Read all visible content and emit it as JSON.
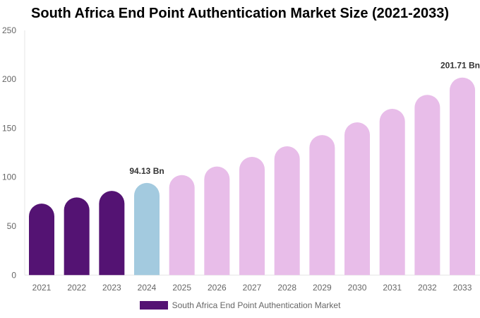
{
  "chart_data": {
    "type": "bar",
    "title": "South Africa End Point Authentication Market Size (2021-2033)",
    "xlabel": "",
    "ylabel": "",
    "ylim": [
      0,
      250
    ],
    "yticks": [
      0,
      50,
      100,
      150,
      200,
      250
    ],
    "categories": [
      "2021",
      "2022",
      "2023",
      "2024",
      "2025",
      "2026",
      "2027",
      "2028",
      "2029",
      "2030",
      "2031",
      "2032",
      "2033"
    ],
    "series": [
      {
        "name": "South Africa End Point Authentication Market",
        "values": [
          73,
          79.3,
          86,
          94.13,
          102.1,
          110.9,
          120.7,
          131.5,
          143,
          156,
          169.8,
          184,
          201.71
        ]
      }
    ],
    "bar_colors": [
      "#541373",
      "#541373",
      "#541373",
      "#a3cadf",
      "#e8bde9",
      "#e8bde9",
      "#e8bde9",
      "#e8bde9",
      "#e8bde9",
      "#e8bde9",
      "#e8bde9",
      "#e8bde9",
      "#e8bde9"
    ],
    "data_labels": {
      "3": "94.13 Bn",
      "12": "201.71 Bn"
    },
    "grid": false,
    "legend_position": "bottom"
  }
}
